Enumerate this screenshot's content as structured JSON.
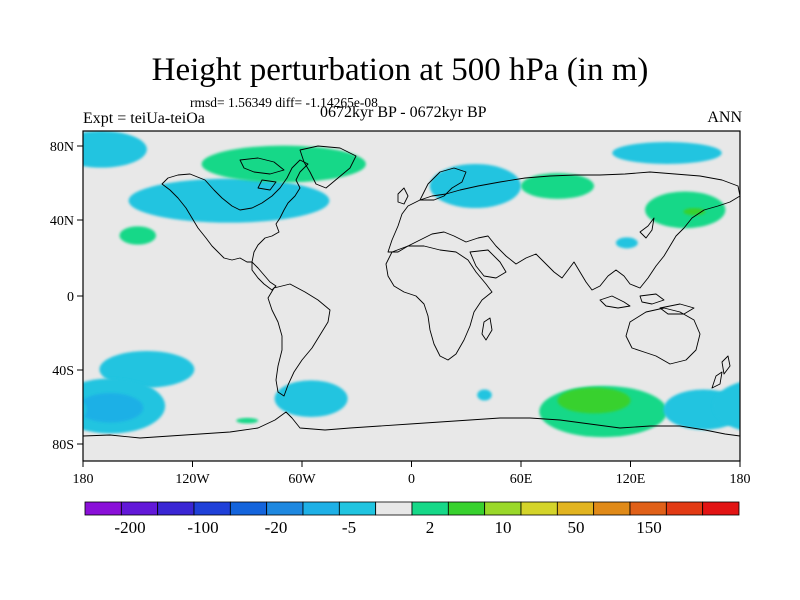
{
  "title": "Height perturbation at 500 hPa (in m)",
  "stats": "rmsd= 1.56349 diff= -1.14265e-08",
  "experiment": "Expt = teiUa-teiOa",
  "period": "0672kyr BP - 0672kyr BP",
  "season": "ANN",
  "map": {
    "background_color": "#e8e8e8",
    "lat_ticks": [
      "80N",
      "40N",
      "0",
      "40S",
      "80S"
    ],
    "lon_ticks": [
      "180",
      "120W",
      "60W",
      "0",
      "60E",
      "120E",
      "180"
    ]
  },
  "colorbar": {
    "colors": [
      "#8a10d8",
      "#6218d8",
      "#3a26d4",
      "#1f40d8",
      "#1464dc",
      "#1e88e0",
      "#1eb0e6",
      "#20c4e0",
      "#e8e8e8",
      "#16d888",
      "#38d12e",
      "#9ad82a",
      "#d4d42a",
      "#e2b420",
      "#e08a18",
      "#e06018",
      "#e23a14",
      "#e21414"
    ],
    "labels": [
      "-200",
      "-100",
      "-20",
      "-5",
      "2",
      "10",
      "50",
      "150"
    ]
  },
  "anomalies": [
    {
      "lon": -145,
      "lat": -40,
      "value": -5,
      "color": "#20c4e0"
    },
    {
      "lon": -165,
      "lat": -60,
      "value": -5,
      "color": "#20c4e0"
    },
    {
      "lon": -165,
      "lat": -61,
      "value": -10,
      "color": "#1eb0e6"
    },
    {
      "lon": -55,
      "lat": -56,
      "value": -5,
      "color": "#20c4e0"
    },
    {
      "lon": 40,
      "lat": -54,
      "value": -5,
      "color": "#20c4e0"
    },
    {
      "lon": -90,
      "lat": -68,
      "value": 2,
      "color": "#16d888"
    },
    {
      "lon": 105,
      "lat": -63,
      "value": 2,
      "color": "#16d888"
    },
    {
      "lon": 100,
      "lat": -57,
      "value": 5,
      "color": "#38d12e"
    },
    {
      "lon": 160,
      "lat": -62,
      "value": -5,
      "color": "#20c4e0"
    },
    {
      "lon": -100,
      "lat": 52,
      "value": -5,
      "color": "#20c4e0"
    },
    {
      "lon": -170,
      "lat": 80,
      "value": -5,
      "color": "#20c4e0"
    },
    {
      "lon": -70,
      "lat": 72,
      "value": 2,
      "color": "#16d888"
    },
    {
      "lon": 35,
      "lat": 60,
      "value": -5,
      "color": "#20c4e0"
    },
    {
      "lon": 80,
      "lat": 60,
      "value": 2,
      "color": "#16d888"
    },
    {
      "lon": 140,
      "lat": 78,
      "value": -5,
      "color": "#20c4e0"
    },
    {
      "lon": 150,
      "lat": 47,
      "value": 2,
      "color": "#16d888"
    },
    {
      "lon": 155,
      "lat": 46,
      "value": 5,
      "color": "#38d12e"
    },
    {
      "lon": 118,
      "lat": 29,
      "value": -5,
      "color": "#20c4e0"
    },
    {
      "lon": -150,
      "lat": 33,
      "value": 2,
      "color": "#16d888"
    }
  ]
}
